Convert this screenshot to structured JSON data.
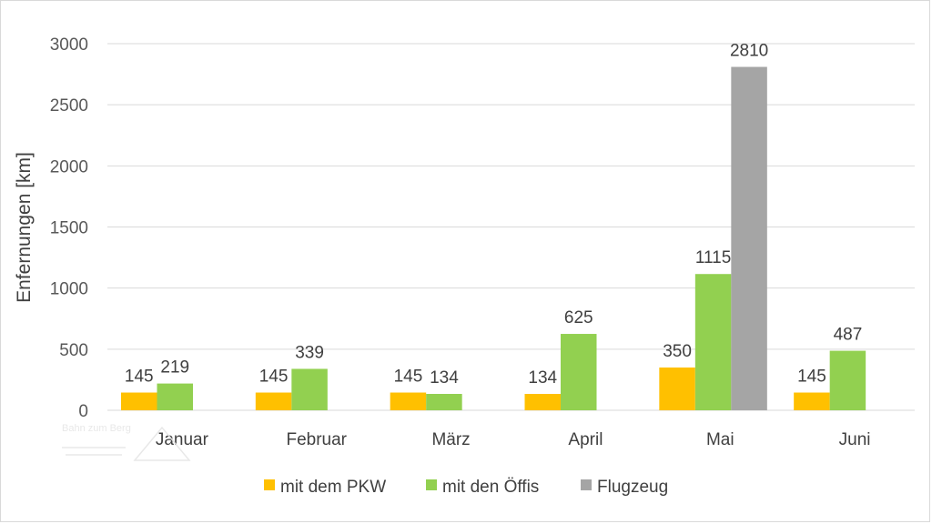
{
  "chart_data": {
    "type": "bar",
    "title": "",
    "xlabel": "",
    "ylabel": "Enfernungen [km]",
    "ylim": [
      0,
      3000
    ],
    "yticks": [
      0,
      500,
      1000,
      1500,
      2000,
      2500,
      3000
    ],
    "grid": true,
    "legend_position": "bottom",
    "categories": [
      "Januar",
      "Februar",
      "März",
      "April",
      "Mai",
      "Juni"
    ],
    "series": [
      {
        "name": "mit dem PKW",
        "color": "#FFC000",
        "values": [
          145,
          145,
          145,
          134,
          350,
          145
        ]
      },
      {
        "name": "mit den Öffis",
        "color": "#92D050",
        "values": [
          219,
          339,
          134,
          625,
          1115,
          487
        ]
      },
      {
        "name": "Flugzeug",
        "color": "#A5A5A5",
        "values": [
          null,
          null,
          null,
          null,
          2810,
          null
        ]
      }
    ]
  },
  "watermark": {
    "text": "Bahn zum Berg"
  }
}
